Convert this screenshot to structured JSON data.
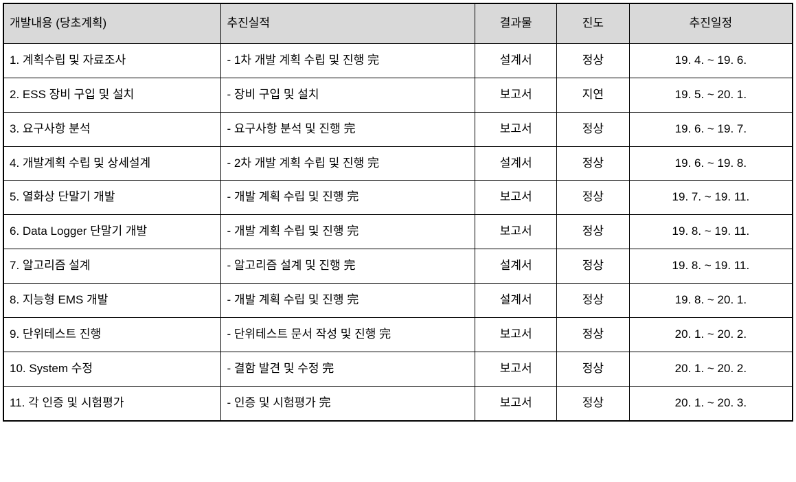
{
  "table": {
    "header_bg": "#d9d9d9",
    "border_color": "#000000",
    "text_color": "#000000",
    "columns": [
      {
        "label": "개발내용 (당초계획)",
        "width": "24%",
        "align": "left",
        "class": "col-plan"
      },
      {
        "label": "추진실적",
        "width": "28%",
        "align": "left",
        "class": "col-progress"
      },
      {
        "label": "결과물",
        "width": "9%",
        "align": "center",
        "class": "col-result"
      },
      {
        "label": "진도",
        "width": "8%",
        "align": "center",
        "class": "col-status"
      },
      {
        "label": "추진일정",
        "width": "18%",
        "align": "center",
        "class": "col-schedule"
      }
    ],
    "rows": [
      {
        "plan": "1. 계획수립 및 자료조사",
        "progress": "- 1차 개발 계획 수립 및 진행 完",
        "result": "설계서",
        "status": "정상",
        "schedule": "19. 4. ~ 19. 6."
      },
      {
        "plan": "2. ESS 장비 구입 및 설치",
        "progress": "- 장비 구입 및 설치",
        "result": "보고서",
        "status": "지연",
        "schedule": "19. 5. ~ 20. 1."
      },
      {
        "plan": "3. 요구사항 분석",
        "progress": "- 요구사항 분석 및 진행 完",
        "result": "보고서",
        "status": "정상",
        "schedule": "19. 6. ~ 19. 7."
      },
      {
        "plan": "4. 개발계획 수립 및 상세설계",
        "progress": "- 2차 개발 계획 수립 및 진행 完",
        "result": "설계서",
        "status": "정상",
        "schedule": "19. 6. ~ 19. 8."
      },
      {
        "plan": "5. 열화상 단말기 개발",
        "progress": "- 개발 계획 수립 및 진행 完",
        "result": "보고서",
        "status": "정상",
        "schedule": "19. 7. ~ 19. 11."
      },
      {
        "plan": "6. Data Logger 단말기 개발",
        "progress": "- 개발 계획 수립 및 진행 完",
        "result": "보고서",
        "status": "정상",
        "schedule": "19. 8. ~ 19. 11."
      },
      {
        "plan": "7. 알고리즘 설계",
        "progress": "- 알고리즘 설계 및 진행 完",
        "result": "설계서",
        "status": "정상",
        "schedule": "19. 8. ~ 19. 11."
      },
      {
        "plan": "8. 지능형 EMS 개발",
        "progress": "- 개발 계획 수립 및 진행 完",
        "result": "설계서",
        "status": "정상",
        "schedule": "19. 8. ~ 20. 1."
      },
      {
        "plan": "9. 단위테스트 진행",
        "progress": "- 단위테스트 문서 작성 및 진행 完",
        "result": "보고서",
        "status": "정상",
        "schedule": "20. 1. ~ 20. 2."
      },
      {
        "plan": "10. System 수정",
        "progress": "- 결함 발견 및 수정 完",
        "result": "보고서",
        "status": "정상",
        "schedule": "20. 1. ~ 20. 2."
      },
      {
        "plan": "11. 각 인증 및 시험평가",
        "progress": "- 인증 및 시험평가 完",
        "result": "보고서",
        "status": "정상",
        "schedule": "20. 1. ~ 20. 3."
      }
    ]
  }
}
